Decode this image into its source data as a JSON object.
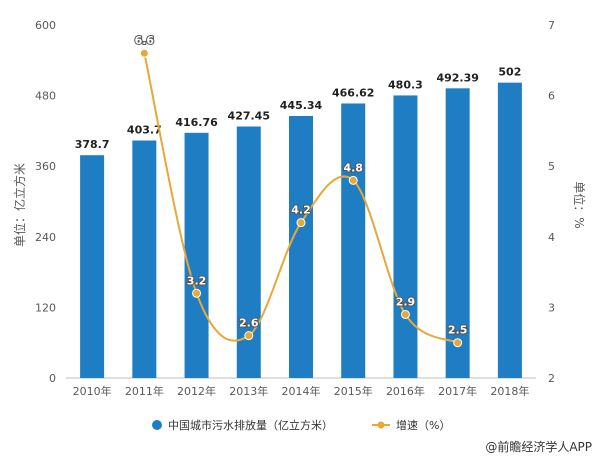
{
  "chart_data": {
    "type": "bar",
    "categories": [
      "2010年",
      "2011年",
      "2012年",
      "2013年",
      "2014年",
      "2015年",
      "2016年",
      "2017年",
      "2018年"
    ],
    "series": [
      {
        "name": "中国城市污水排放量（亿立方米）",
        "type": "bar",
        "axis": "left",
        "color": "#1f7dc4",
        "values": [
          378.7,
          403.7,
          416.76,
          427.45,
          445.34,
          466.62,
          480.3,
          492.39,
          502
        ],
        "labels": [
          "378.7",
          "403.7",
          "416.76",
          "427.45",
          "445.34",
          "466.62",
          "480.3",
          "492.39",
          "502"
        ]
      },
      {
        "name": "增速（%）",
        "type": "line",
        "axis": "right",
        "color": "#e8a838",
        "values": [
          null,
          6.6,
          3.2,
          2.6,
          4.2,
          4.8,
          2.9,
          2.5,
          null
        ],
        "labels": [
          "",
          "6.6",
          "3.2",
          "2.6",
          "4.2",
          "4.8",
          "2.9",
          "2.5",
          ""
        ]
      }
    ],
    "ylabel": "单位：亿立方米",
    "y2label": "单位：%",
    "ylim": [
      0,
      600
    ],
    "y2lim": [
      2,
      7
    ],
    "yticks": [
      "0",
      "120",
      "240",
      "360",
      "480",
      "600"
    ],
    "y2ticks": [
      "2",
      "3",
      "4",
      "5",
      "6",
      "7"
    ],
    "grid": false,
    "legend_position": "bottom"
  },
  "credit": "@前瞻经济学人APP"
}
